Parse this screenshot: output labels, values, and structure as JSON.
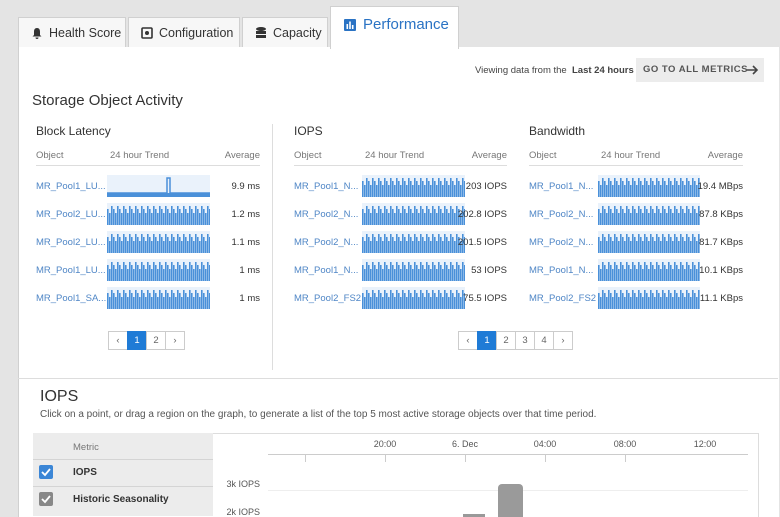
{
  "tabs": [
    {
      "label": "Health Score"
    },
    {
      "label": "Configuration"
    },
    {
      "label": "Capacity"
    },
    {
      "label": "Performance"
    }
  ],
  "viewing": {
    "prefix": "Viewing data from the",
    "range": "Last 24 hours",
    "button": "GO TO ALL METRICS"
  },
  "activity": {
    "title": "Storage Object Activity",
    "panels": [
      {
        "title": "Block Latency",
        "headers": [
          "Object",
          "24 hour Trend",
          "Average"
        ],
        "rows": [
          {
            "object": "MR_Pool1_LU...",
            "average": "9.9 ms"
          },
          {
            "object": "MR_Pool2_LU...",
            "average": "1.2 ms"
          },
          {
            "object": "MR_Pool2_LU...",
            "average": "1.1 ms"
          },
          {
            "object": "MR_Pool1_LU...",
            "average": "1 ms"
          },
          {
            "object": "MR_Pool1_SA...",
            "average": "1 ms"
          }
        ],
        "pagination": {
          "prev": "‹",
          "pages": [
            "1",
            "2"
          ],
          "next": "›"
        }
      },
      {
        "title": "IOPS",
        "headers": [
          "Object",
          "24 hour Trend",
          "Average"
        ],
        "rows": [
          {
            "object": "MR_Pool1_N...",
            "average": "203 IOPS"
          },
          {
            "object": "MR_Pool2_N...",
            "average": "202.8 IOPS"
          },
          {
            "object": "MR_Pool2_N...",
            "average": "201.5 IOPS"
          },
          {
            "object": "MR_Pool1_N...",
            "average": "53 IOPS"
          },
          {
            "object": "MR_Pool2_FS2",
            "average": "75.5 IOPS"
          }
        ],
        "pagination": {
          "prev": "‹",
          "pages": [
            "1",
            "2",
            "3",
            "4"
          ],
          "next": "›"
        }
      },
      {
        "title": "Bandwidth",
        "headers": [
          "Object",
          "24 hour Trend",
          "Average"
        ],
        "rows": [
          {
            "object": "MR_Pool1_N...",
            "average": "19.4 MBps"
          },
          {
            "object": "MR_Pool2_N...",
            "average": "87.8 KBps"
          },
          {
            "object": "MR_Pool2_N...",
            "average": "81.7 KBps"
          },
          {
            "object": "MR_Pool1_N...",
            "average": "10.1 KBps"
          },
          {
            "object": "MR_Pool2_FS2",
            "average": "11.1 KBps"
          }
        ]
      }
    ]
  },
  "iops": {
    "title": "IOPS",
    "description": "Click on a point, or drag a region on the graph, to generate a list of the top 5 most active storage objects over that time period.",
    "metric_header": "Metric",
    "metrics": [
      "IOPS",
      "Historic Seasonality"
    ],
    "x_labels": [
      "20:00",
      "6. Dec",
      "04:00",
      "08:00",
      "12:00"
    ],
    "y_labels": [
      "3k IOPS",
      "2k IOPS"
    ]
  }
}
